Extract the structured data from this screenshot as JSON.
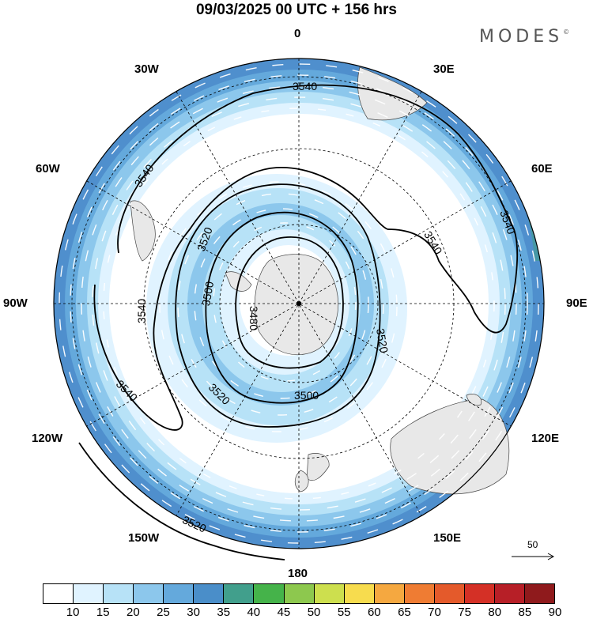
{
  "title": "09/03/2025  00 UTC  + 156 hrs",
  "brand": "MODES",
  "brand_mark": "©",
  "lon_labels": {
    "n0": "0",
    "n30e": "30E",
    "n60e": "60E",
    "n90e": "90E",
    "n120e": "120E",
    "n150e": "150E",
    "n180": "180",
    "n150w": "150W",
    "n120w": "120W",
    "n90w": "90W",
    "n60w": "60W",
    "n30w": "30W"
  },
  "contour_labels": {
    "c3540_top": "3540",
    "c3540_left": "3540",
    "c3540_right1": "3540",
    "c3540_right2": "3540",
    "c3540_w": "3540",
    "c3540_sw": "3540",
    "c3520_n": "3520",
    "c3520_e": "3520",
    "c3520_s": "3520",
    "c3520_outer": "3520",
    "c3500_w": "3500",
    "c3500_s": "3500",
    "c3480": "3480"
  },
  "colorbar": {
    "colors": [
      "#ffffff",
      "#e0f3ff",
      "#b7e2f7",
      "#8cc7ec",
      "#64a9dc",
      "#4a8ec9",
      "#419f8c",
      "#45b34a",
      "#8dc84e",
      "#cddf4e",
      "#f7dc4e",
      "#f5a840",
      "#ef7c33",
      "#e45a2b",
      "#d43026",
      "#b71f27",
      "#8f1a1c"
    ],
    "ticks": [
      "10",
      "15",
      "20",
      "25",
      "30",
      "35",
      "40",
      "45",
      "50",
      "55",
      "60",
      "65",
      "70",
      "75",
      "80",
      "85",
      "90"
    ]
  },
  "reference_vector": {
    "label": "50"
  },
  "map_style": {
    "fill_outer": "#4f8fcd",
    "fill_mid": "#78b5e3",
    "fill_light": "#aad8f3",
    "fill_faint": "#dff1fb",
    "land": "#e8e8e8",
    "contour": "#000000"
  }
}
